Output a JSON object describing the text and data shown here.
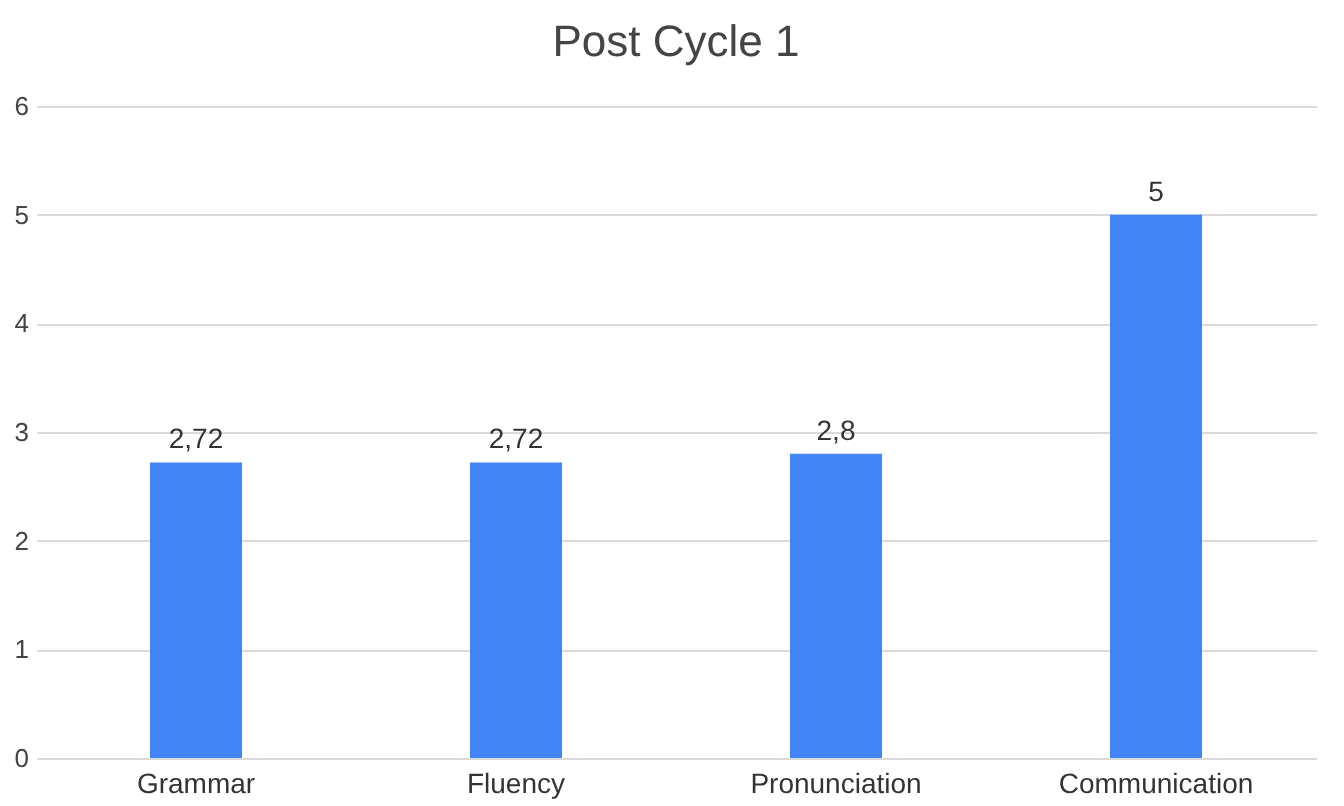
{
  "chart_data": {
    "type": "bar",
    "title": "Post Cycle 1",
    "categories": [
      "Grammar",
      "Fluency",
      "Pronunciation",
      "Communication"
    ],
    "values": [
      2.72,
      2.72,
      2.8,
      5
    ],
    "value_labels": [
      "2,72",
      "2,72",
      "2,8",
      "5"
    ],
    "color": "#4285f4",
    "ylim": [
      0,
      6
    ],
    "yticks": [
      0,
      1,
      2,
      3,
      4,
      5,
      6
    ],
    "grid": "y"
  }
}
